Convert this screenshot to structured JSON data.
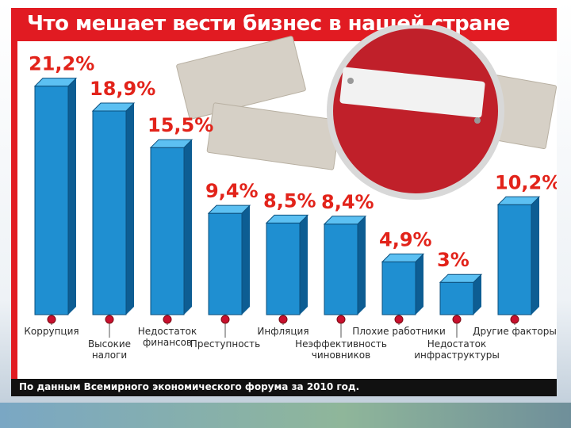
{
  "title": "Что мешает вести бизнес в нашей стране",
  "source": "По данным Всемирного экономического форума за 2010 год.",
  "colors": {
    "header": "#e11b22",
    "bar": "#1f8fd1",
    "value_label": "#e2231a",
    "dot": "#c8102e"
  },
  "chart_data": {
    "type": "bar",
    "categories": [
      "Коррупция",
      "Высокие налоги",
      "Недостаток финансов",
      "Преступность",
      "Инфляция",
      "Неэффективность чиновников",
      "Плохие работники",
      "Недостаток инфраструктуры",
      "Другие факторы"
    ],
    "category_lines": [
      [
        "Коррупция"
      ],
      [
        "Высокие",
        "налоги"
      ],
      [
        "Недостаток",
        "финансов"
      ],
      [
        "Преступность"
      ],
      [
        "Инфляция"
      ],
      [
        "Неэффективность",
        "чиновников"
      ],
      [
        "Плохие работники"
      ],
      [
        "Недостаток",
        "инфраструктуры"
      ],
      [
        "Другие факторы"
      ]
    ],
    "values": [
      21.2,
      18.9,
      15.5,
      9.4,
      8.5,
      8.4,
      4.9,
      3,
      10.2
    ],
    "value_labels": [
      "21,2%",
      "18,9%",
      "15,5%",
      "9,4%",
      "8,5%",
      "8,4%",
      "4,9%",
      "3%",
      "10,2%"
    ],
    "unit": "%",
    "title": "Что мешает вести бизнес в нашей стране"
  }
}
